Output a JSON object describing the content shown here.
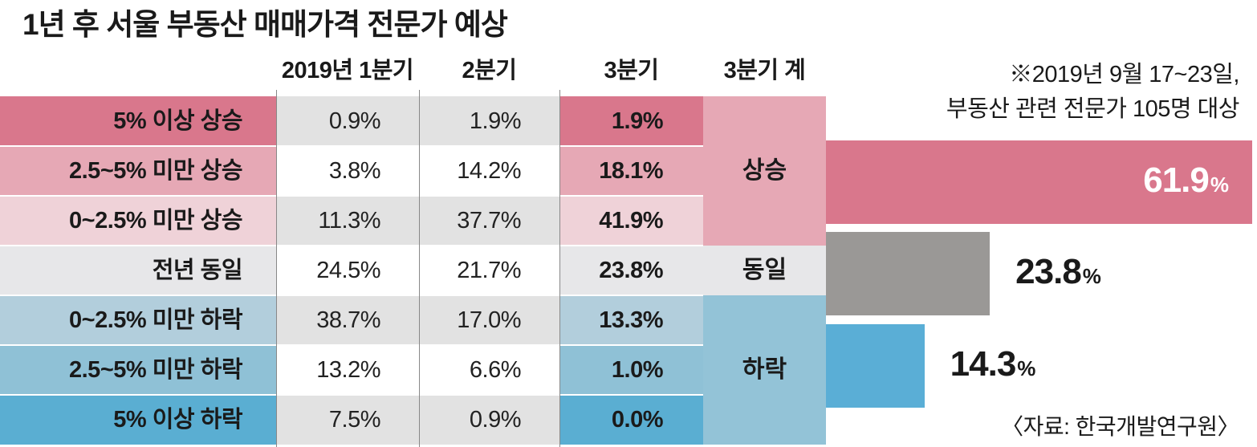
{
  "title": "1년 후 서울 부동산 매매가격 전문가 예상",
  "note_line1": "※2019년 9월 17~23일,",
  "note_line2": "부동산 관련 전문가 105명 대상",
  "source": "〈자료: 한국개발연구원〉",
  "colors": {
    "rise_strong": "#d9778c",
    "rise_mid": "#e6a8b5",
    "rise_weak": "#efd2d8",
    "flat": "#e7e7e9",
    "fall_weak": "#b2cedc",
    "fall_mid": "#8fc1d6",
    "fall_strong": "#5aaed2",
    "group_rise": "#e6a8b5",
    "group_flat": "#e7e7e9",
    "group_fall": "#93c3d7",
    "cell_grey": "#e2e2e2",
    "bar_rise": "#d9778c",
    "bar_flat": "#9a9896",
    "bar_fall": "#5aaed6"
  },
  "chart_data": {
    "type": "table",
    "title": "1년 후 서울 부동산 매매가격 전문가 예상",
    "columns": [
      "",
      "2019년 1분기",
      "2분기",
      "3분기",
      "3분기 계"
    ],
    "rows": [
      {
        "label": "5% 이상 상승",
        "q1": "0.9%",
        "q2": "1.9%",
        "q3": "1.9%"
      },
      {
        "label": "2.5~5% 미만 상승",
        "q1": "3.8%",
        "q2": "14.2%",
        "q3": "18.1%"
      },
      {
        "label": "0~2.5% 미만 상승",
        "q1": "11.3%",
        "q2": "37.7%",
        "q3": "41.9%"
      },
      {
        "label": "전년 동일",
        "q1": "24.5%",
        "q2": "21.7%",
        "q3": "23.8%"
      },
      {
        "label": "0~2.5% 미만 하락",
        "q1": "38.7%",
        "q2": "17.0%",
        "q3": "13.3%"
      },
      {
        "label": "2.5~5% 미만 하락",
        "q1": "13.2%",
        "q2": "6.6%",
        "q3": "1.0%"
      },
      {
        "label": "5% 이상 하락",
        "q1": "7.5%",
        "q2": "0.9%",
        "q3": "0.0%"
      }
    ],
    "groups": [
      {
        "name": "상승",
        "rows": [
          0,
          1,
          2
        ]
      },
      {
        "name": "동일",
        "rows": [
          3
        ]
      },
      {
        "name": "하락",
        "rows": [
          4,
          5,
          6
        ]
      }
    ],
    "bars": {
      "type": "bar",
      "categories": [
        "상승",
        "동일",
        "하락"
      ],
      "values": [
        61.9,
        23.8,
        14.3
      ],
      "value_labels": [
        "61.9",
        "23.8",
        "14.3"
      ],
      "unit": "%"
    }
  }
}
